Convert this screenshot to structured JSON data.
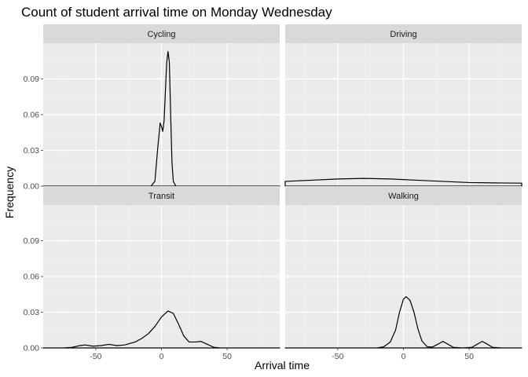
{
  "chart_data": {
    "type": "area",
    "title": "Count of student arrival time on Monday Wednesday",
    "xlabel": "Arrival time",
    "ylabel": "Frequency",
    "xlim": [
      -90,
      90
    ],
    "ylim": [
      0,
      0.12
    ],
    "x_ticks": [
      -50,
      0,
      50
    ],
    "y_ticks": [
      0.0,
      0.03,
      0.06,
      0.09
    ],
    "y_tick_labels": [
      "0.00",
      "0.03",
      "0.06",
      "0.09"
    ],
    "grid": true,
    "facets": [
      {
        "label": "Cycling",
        "points": [
          [
            -90,
            0
          ],
          [
            -20,
            0
          ],
          [
            -8,
            0
          ],
          [
            -5,
            0.004
          ],
          [
            -3,
            0.03
          ],
          [
            -1,
            0.053
          ],
          [
            0,
            0.05
          ],
          [
            1,
            0.046
          ],
          [
            2,
            0.055
          ],
          [
            3,
            0.08
          ],
          [
            4,
            0.104
          ],
          [
            5,
            0.113
          ],
          [
            6,
            0.104
          ],
          [
            7,
            0.06
          ],
          [
            8,
            0.02
          ],
          [
            9,
            0.004
          ],
          [
            11,
            0
          ],
          [
            90,
            0
          ]
        ]
      },
      {
        "label": "Driving",
        "points": [
          [
            -90,
            0.004
          ],
          [
            -70,
            0.005
          ],
          [
            -50,
            0.006
          ],
          [
            -30,
            0.0065
          ],
          [
            -10,
            0.006
          ],
          [
            10,
            0.005
          ],
          [
            30,
            0.004
          ],
          [
            50,
            0.003
          ],
          [
            70,
            0.0027
          ],
          [
            90,
            0.0025
          ]
        ]
      },
      {
        "label": "Transit",
        "points": [
          [
            -90,
            0
          ],
          [
            -75,
            0
          ],
          [
            -68,
            0.0005
          ],
          [
            -62,
            0.002
          ],
          [
            -58,
            0.0025
          ],
          [
            -52,
            0.0015
          ],
          [
            -46,
            0.002
          ],
          [
            -40,
            0.003
          ],
          [
            -34,
            0.002
          ],
          [
            -28,
            0.0025
          ],
          [
            -20,
            0.005
          ],
          [
            -15,
            0.008
          ],
          [
            -10,
            0.012
          ],
          [
            -5,
            0.018
          ],
          [
            0,
            0.026
          ],
          [
            5,
            0.031
          ],
          [
            9,
            0.029
          ],
          [
            13,
            0.02
          ],
          [
            17,
            0.01
          ],
          [
            21,
            0.005
          ],
          [
            26,
            0.005
          ],
          [
            30,
            0.0055
          ],
          [
            35,
            0.003
          ],
          [
            40,
            0.0005
          ],
          [
            45,
            0
          ],
          [
            90,
            0
          ]
        ]
      },
      {
        "label": "Walking",
        "points": [
          [
            -90,
            0
          ],
          [
            -20,
            0
          ],
          [
            -15,
            0.001
          ],
          [
            -10,
            0.005
          ],
          [
            -6,
            0.015
          ],
          [
            -3,
            0.03
          ],
          [
            0,
            0.041
          ],
          [
            2,
            0.043
          ],
          [
            5,
            0.04
          ],
          [
            8,
            0.03
          ],
          [
            11,
            0.016
          ],
          [
            14,
            0.006
          ],
          [
            18,
            0.001
          ],
          [
            22,
            0.0008
          ],
          [
            26,
            0.003
          ],
          [
            30,
            0.0055
          ],
          [
            34,
            0.003
          ],
          [
            38,
            0.0005
          ],
          [
            45,
            0
          ],
          [
            52,
            0.0005
          ],
          [
            56,
            0.003
          ],
          [
            60,
            0.0055
          ],
          [
            64,
            0.003
          ],
          [
            68,
            0.0005
          ],
          [
            75,
            0
          ],
          [
            90,
            0
          ]
        ]
      }
    ]
  }
}
